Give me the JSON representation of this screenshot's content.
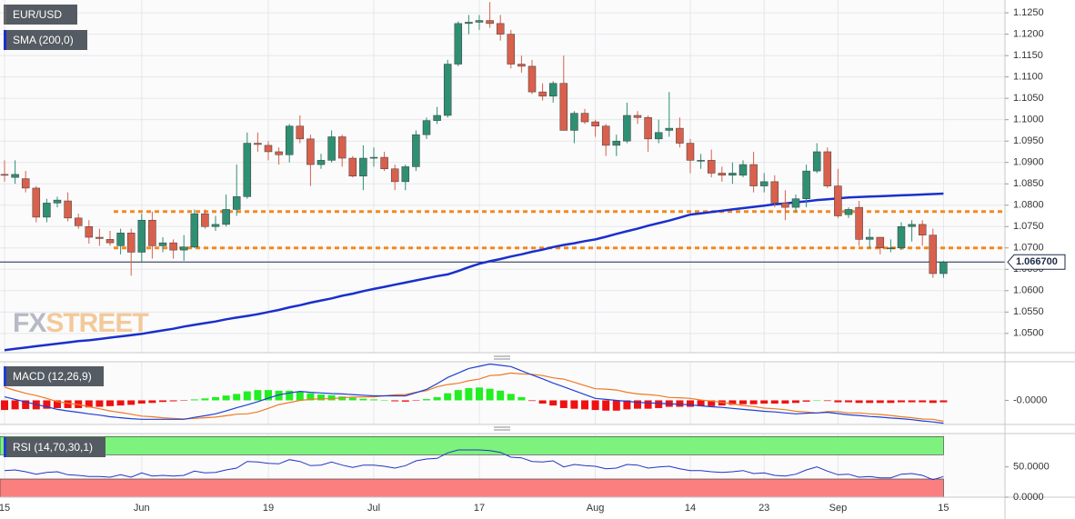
{
  "chart_data": [
    {
      "type": "candlestick",
      "name": "EUR/USD",
      "categories": [
        "15",
        null,
        null,
        null,
        null,
        null,
        null,
        null,
        null,
        null,
        null,
        null,
        null,
        "Jun",
        null,
        null,
        null,
        null,
        null,
        null,
        null,
        null,
        null,
        null,
        null,
        "19",
        null,
        null,
        null,
        null,
        null,
        null,
        null,
        null,
        null,
        "Jul",
        null,
        null,
        null,
        null,
        null,
        null,
        null,
        null,
        null,
        "17",
        null,
        null,
        null,
        null,
        null,
        null,
        null,
        null,
        null,
        null,
        "Aug",
        null,
        null,
        null,
        null,
        null,
        null,
        null,
        null,
        "14",
        null,
        null,
        null,
        null,
        null,
        null,
        "23",
        null,
        null,
        null,
        null,
        null,
        null,
        "Sep",
        null,
        null,
        null,
        null,
        null,
        null,
        null,
        null,
        null,
        "15"
      ],
      "open": [
        1.0872,
        1.0865,
        1.0862,
        1.084,
        1.0772,
        1.0805,
        1.081,
        1.077,
        1.075,
        1.0725,
        1.072,
        1.0705,
        1.0735,
        1.069,
        1.0765,
        1.0705,
        1.0712,
        1.0695,
        1.0702,
        1.078,
        1.075,
        1.0755,
        1.079,
        1.082,
        1.0945,
        1.094,
        1.0925,
        1.0918,
        1.0985,
        1.0955,
        1.0895,
        1.0905,
        1.096,
        1.091,
        1.0868,
        1.091,
        1.0912,
        1.0885,
        1.0855,
        1.089,
        1.0965,
        1.0998,
        1.101,
        1.113,
        1.1225,
        1.1228,
        1.1232,
        1.1225,
        1.12,
        1.113,
        1.1125,
        1.1065,
        1.1055,
        1.1085,
        1.0975,
        1.1015,
        1.0995,
        1.0985,
        1.094,
        1.095,
        1.101,
        1.1005,
        1.0955,
        1.0975,
        1.098,
        1.0945,
        1.0905,
        1.0905,
        1.0875,
        1.087,
        1.087,
        1.0895,
        1.0845,
        1.0855,
        1.0805,
        1.0795,
        1.0815,
        1.088,
        1.0925,
        1.0845,
        1.0778,
        1.0795,
        1.072,
        1.0725,
        1.07,
        1.07,
        1.075,
        1.0755,
        1.073,
        1.064
      ],
      "high": [
        1.0905,
        1.0905,
        1.088,
        1.0845,
        1.0815,
        1.082,
        1.083,
        1.078,
        1.0765,
        1.0745,
        1.074,
        1.0745,
        1.0745,
        1.078,
        1.0785,
        1.0725,
        1.072,
        1.073,
        1.079,
        1.079,
        1.0775,
        1.0825,
        1.0895,
        1.097,
        1.097,
        1.095,
        1.0935,
        1.099,
        1.101,
        1.0965,
        1.092,
        1.0975,
        1.0965,
        1.0915,
        1.094,
        1.0935,
        1.0925,
        1.0895,
        1.0895,
        1.0975,
        1.1005,
        1.103,
        1.114,
        1.123,
        1.1245,
        1.1245,
        1.1275,
        1.1245,
        1.121,
        1.115,
        1.114,
        1.1085,
        1.109,
        1.115,
        1.102,
        1.1025,
        1.1,
        1.099,
        1.0965,
        1.104,
        1.102,
        1.101,
        1.1,
        1.1065,
        1.1005,
        1.0955,
        1.092,
        1.093,
        1.089,
        1.09,
        1.0905,
        1.0925,
        1.0875,
        1.087,
        1.0835,
        1.0825,
        1.0895,
        1.0945,
        1.0935,
        1.0885,
        1.0795,
        1.081,
        1.0745,
        1.0725,
        1.072,
        1.076,
        1.0765,
        1.0765,
        1.0745,
        1.067
      ],
      "low": [
        1.0855,
        1.085,
        1.083,
        1.076,
        1.076,
        1.0795,
        1.0762,
        1.0745,
        1.071,
        1.0705,
        1.0705,
        1.0685,
        1.0635,
        1.0665,
        1.0675,
        1.069,
        1.0675,
        1.067,
        1.07,
        1.0745,
        1.074,
        1.075,
        1.0775,
        1.0815,
        1.0925,
        1.0905,
        1.0895,
        1.09,
        1.0945,
        1.0845,
        1.0885,
        1.09,
        1.089,
        1.0865,
        1.0835,
        1.089,
        1.088,
        1.0835,
        1.0835,
        1.088,
        1.0955,
        1.099,
        1.1005,
        1.1125,
        1.12,
        1.121,
        1.1215,
        1.1185,
        1.112,
        1.111,
        1.106,
        1.1045,
        1.104,
        1.0975,
        1.0945,
        1.099,
        1.096,
        1.0915,
        1.0915,
        1.0945,
        1.099,
        1.0925,
        1.0945,
        1.096,
        1.0935,
        1.0875,
        1.0885,
        1.0865,
        1.0855,
        1.085,
        1.0865,
        1.083,
        1.083,
        1.0795,
        1.0765,
        1.0785,
        1.0795,
        1.0875,
        1.084,
        1.077,
        1.077,
        1.0705,
        1.07,
        1.0685,
        1.069,
        1.0695,
        1.0715,
        1.0705,
        1.063,
        1.063
      ],
      "close": [
        1.087,
        1.0872,
        1.084,
        1.0772,
        1.0805,
        1.0812,
        1.077,
        1.0752,
        1.0725,
        1.0722,
        1.0712,
        1.0735,
        1.069,
        1.0765,
        1.0705,
        1.0712,
        1.0695,
        1.0702,
        1.078,
        1.075,
        1.0755,
        1.079,
        1.082,
        1.0945,
        1.0942,
        1.0925,
        1.0918,
        1.0985,
        1.0955,
        1.0895,
        1.0905,
        1.096,
        1.091,
        1.0868,
        1.091,
        1.0912,
        1.0885,
        1.0855,
        1.089,
        1.0965,
        1.0998,
        1.101,
        1.113,
        1.1225,
        1.1228,
        1.1232,
        1.1225,
        1.12,
        1.113,
        1.1125,
        1.1065,
        1.1055,
        1.1085,
        1.0975,
        1.1015,
        1.0995,
        1.0985,
        1.094,
        1.095,
        1.101,
        1.1005,
        1.0955,
        1.097,
        1.098,
        1.0945,
        1.0905,
        1.0905,
        1.0875,
        1.087,
        1.0875,
        1.0895,
        1.0845,
        1.0855,
        1.0805,
        1.0795,
        1.0815,
        1.088,
        1.0925,
        1.0845,
        1.0775,
        1.079,
        1.072,
        1.0725,
        1.07,
        1.07,
        1.075,
        1.0755,
        1.073,
        1.064,
        1.0667
      ],
      "up_color": "#2f8f72",
      "down_color": "#d8604c",
      "series": [
        {
          "name": "SMA (200,0)",
          "color": "#1a2fcc",
          "values": [
            1.0461,
            1.0464,
            1.0467,
            1.047,
            1.0473,
            1.0476,
            1.0479,
            1.0482,
            1.0484,
            1.0487,
            1.049,
            1.0493,
            1.0496,
            1.0499,
            1.0503,
            1.0507,
            1.0511,
            1.0516,
            1.052,
            1.0524,
            1.0528,
            1.0533,
            1.0537,
            1.0541,
            1.0545,
            1.055,
            1.0555,
            1.0561,
            1.0566,
            1.0572,
            1.0577,
            1.0582,
            1.0588,
            1.0593,
            1.0599,
            1.0604,
            1.0609,
            1.0614,
            1.0619,
            1.0624,
            1.0629,
            1.0634,
            1.0638,
            1.0646,
            1.0655,
            1.0663,
            1.0669,
            1.0674,
            1.068,
            1.0685,
            1.0691,
            1.0696,
            1.0702,
            1.0707,
            1.0711,
            1.0716,
            1.072,
            1.0726,
            1.0733,
            1.0739,
            1.0745,
            1.0752,
            1.0758,
            1.0764,
            1.0771,
            1.0778,
            1.0781,
            1.0784,
            1.0787,
            1.079,
            1.0793,
            1.0796,
            1.0799,
            1.0802,
            1.0804,
            1.0807,
            1.0809,
            1.0812,
            1.0814,
            1.0816,
            1.0818,
            1.0819,
            1.082,
            1.0821,
            1.0822,
            1.0823,
            1.0824,
            1.0825,
            1.0826,
            1.0827
          ]
        }
      ],
      "hlines": [
        1.0785,
        1.07
      ],
      "hline_color": "#f28a1e",
      "last_value": 1.0667,
      "last_value_label": "1.066700",
      "last_color": "#1b2b48",
      "ylim": [
        1.0455,
        1.128
      ],
      "yticks": [
        {
          "value": 1.05,
          "label": "1.0500"
        },
        {
          "value": 1.055,
          "label": "1.0550"
        },
        {
          "value": 1.06,
          "label": "1.0600"
        },
        {
          "value": 1.065,
          "label": "1.0650"
        },
        {
          "value": 1.07,
          "label": "1.0700"
        },
        {
          "value": 1.075,
          "label": "1.0750"
        },
        {
          "value": 1.08,
          "label": "1.0800"
        },
        {
          "value": 1.085,
          "label": "1.0850"
        },
        {
          "value": 1.09,
          "label": "1.0900"
        },
        {
          "value": 1.095,
          "label": "1.0950"
        },
        {
          "value": 1.1,
          "label": "1.1000"
        },
        {
          "value": 1.105,
          "label": "1.1050"
        },
        {
          "value": 1.11,
          "label": "1.1100"
        },
        {
          "value": 1.115,
          "label": "1.1150"
        },
        {
          "value": 1.12,
          "label": "1.1200"
        },
        {
          "value": 1.125,
          "label": "1.1250"
        }
      ],
      "grid": true,
      "watermark": [
        "FX",
        "STREET"
      ]
    },
    {
      "type": "macd",
      "title": "MACD (12,26,9)",
      "macd": [
        0.0011,
        0.0003,
        -0.0005,
        -0.0013,
        -0.002,
        -0.0028,
        -0.0033,
        -0.0037,
        -0.0042,
        -0.0046,
        -0.0051,
        -0.0054,
        -0.0057,
        -0.0059,
        -0.0059,
        -0.0059,
        -0.0059,
        -0.0059,
        -0.0053,
        -0.0048,
        -0.0042,
        -0.0033,
        -0.0023,
        -0.0014,
        -0.0004,
        0.0007,
        0.0017,
        0.0023,
        0.0028,
        0.0025,
        0.0023,
        0.0021,
        0.002,
        0.0018,
        0.0016,
        0.0014,
        0.0014,
        0.0014,
        0.0014,
        0.0024,
        0.0034,
        0.0052,
        0.0071,
        0.0085,
        0.0099,
        0.0106,
        0.0113,
        0.0109,
        0.0105,
        0.0092,
        0.0079,
        0.0067,
        0.0054,
        0.0042,
        0.003,
        0.0018,
        0.0006,
        0.0003,
        0.0,
        -0.0003,
        -0.0006,
        -0.0008,
        -0.0009,
        -0.0011,
        -0.0012,
        -0.0014,
        -0.0017,
        -0.002,
        -0.0022,
        -0.0025,
        -0.0028,
        -0.0031,
        -0.0034,
        -0.0036,
        -0.0039,
        -0.0042,
        -0.004,
        -0.0039,
        -0.0037,
        -0.0041,
        -0.0045,
        -0.0047,
        -0.005,
        -0.0052,
        -0.0055,
        -0.0057,
        -0.006,
        -0.0064,
        -0.0067,
        -0.0071
      ],
      "signal": [
        0.0041,
        0.0031,
        0.0022,
        0.0015,
        0.0006,
        -0.0004,
        -0.0009,
        -0.0013,
        -0.002,
        -0.0026,
        -0.0033,
        -0.0038,
        -0.0043,
        -0.0049,
        -0.0051,
        -0.0054,
        -0.0056,
        -0.0058,
        -0.0056,
        -0.0054,
        -0.0052,
        -0.0048,
        -0.0043,
        -0.0042,
        -0.0036,
        -0.0025,
        -0.0013,
        -0.0007,
        0.0,
        0.0003,
        0.0005,
        0.0005,
        0.0008,
        0.001,
        0.0011,
        0.0011,
        0.0014,
        0.0017,
        0.0018,
        0.0025,
        0.003,
        0.0042,
        0.0049,
        0.0053,
        0.0061,
        0.0066,
        0.0077,
        0.0079,
        0.0085,
        0.0082,
        0.0081,
        0.0077,
        0.007,
        0.0066,
        0.0056,
        0.0046,
        0.0036,
        0.0035,
        0.0032,
        0.0025,
        0.002,
        0.0018,
        0.0015,
        0.0009,
        0.0008,
        0.0006,
        0.0001,
        -0.0002,
        -0.0006,
        -0.0011,
        -0.0016,
        -0.0019,
        -0.0024,
        -0.0026,
        -0.0029,
        -0.0034,
        -0.0036,
        -0.0039,
        -0.0035,
        -0.0035,
        -0.0039,
        -0.0039,
        -0.0042,
        -0.0044,
        -0.0047,
        -0.0051,
        -0.0054,
        -0.0058,
        -0.0059,
        -0.0065
      ],
      "histogram": [
        -0.003,
        -0.0028,
        -0.0027,
        -0.0028,
        -0.0026,
        -0.0024,
        -0.0024,
        -0.0024,
        -0.0022,
        -0.002,
        -0.0018,
        -0.0016,
        -0.0014,
        -0.001,
        -0.0008,
        -0.0005,
        -0.0003,
        -0.0001,
        0.0003,
        0.0006,
        0.001,
        0.0015,
        0.002,
        0.0028,
        0.0032,
        0.0032,
        0.003,
        0.003,
        0.0028,
        0.0022,
        0.0018,
        0.0016,
        0.0012,
        0.0008,
        0.0005,
        0.0003,
        0.0,
        -0.0003,
        -0.0004,
        -0.0001,
        0.0004,
        0.001,
        0.0022,
        0.0032,
        0.0038,
        0.004,
        0.0036,
        0.003,
        0.002,
        0.001,
        -0.0002,
        -0.001,
        -0.0016,
        -0.0024,
        -0.0026,
        -0.0028,
        -0.003,
        -0.0032,
        -0.0032,
        -0.0028,
        -0.0026,
        -0.0026,
        -0.0024,
        -0.002,
        -0.002,
        -0.002,
        -0.0018,
        -0.0018,
        -0.0016,
        -0.0014,
        -0.0012,
        -0.0012,
        -0.001,
        -0.001,
        -0.001,
        -0.0008,
        -0.0004,
        0.0,
        -0.0002,
        -0.0006,
        -0.0006,
        -0.0008,
        -0.0008,
        -0.0008,
        -0.0008,
        -0.0006,
        -0.0006,
        -0.0006,
        -0.0008,
        -0.0006
      ],
      "macd_color": "#1f3fd0",
      "signal_color": "#f07a22",
      "up_color": "#22ee22",
      "down_color": "#ee1111",
      "ylim": [
        -0.0075,
        0.012
      ],
      "yticks": [
        {
          "value": 0,
          "label": "-0.0000"
        }
      ]
    },
    {
      "type": "rsi",
      "title": "RSI (14,70,30,1)",
      "values": [
        44,
        45,
        42,
        38,
        41,
        42,
        37,
        36,
        34,
        34,
        33,
        37,
        33,
        40,
        35,
        36,
        35,
        36,
        43,
        40,
        41,
        45,
        48,
        59,
        58,
        56,
        55,
        62,
        59,
        52,
        53,
        58,
        53,
        49,
        53,
        53,
        51,
        48,
        52,
        60,
        63,
        64,
        73,
        78,
        78,
        78,
        77,
        74,
        66,
        65,
        59,
        58,
        60,
        50,
        54,
        52,
        51,
        47,
        48,
        54,
        53,
        48,
        50,
        51,
        47,
        44,
        44,
        42,
        41,
        42,
        44,
        39,
        40,
        36,
        35,
        38,
        45,
        50,
        43,
        37,
        38,
        33,
        34,
        32,
        32,
        38,
        39,
        36,
        29,
        34
      ],
      "color": "#2435c0",
      "bands": [
        {
          "range": [
            70,
            100
          ],
          "color": "#7df27d"
        },
        {
          "range": [
            0,
            30
          ],
          "color": "#fa7f7f"
        }
      ],
      "ylim": [
        0,
        105
      ],
      "yticks": [
        {
          "value": 50,
          "label": "50.0000"
        },
        {
          "value": 0,
          "label": "0.0000"
        }
      ]
    }
  ]
}
